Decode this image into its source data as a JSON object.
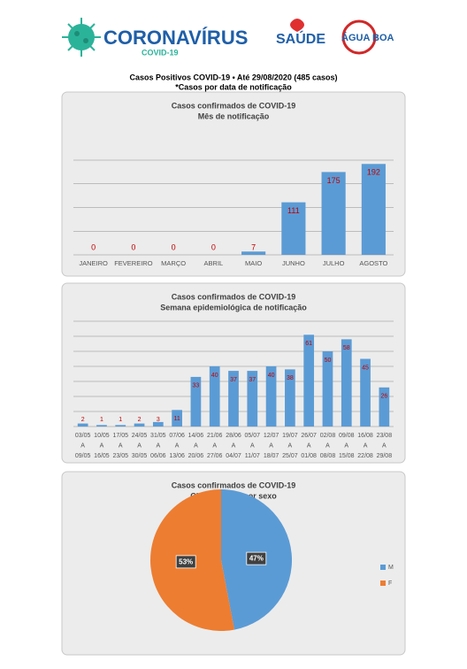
{
  "header": {
    "brand": "CORONAVÍRUS",
    "brand_sub": "COVID-19",
    "org": "SAÚDE",
    "city": "ÁGUA BOA"
  },
  "title": "Casos Positivos COVID-19 • Até 29/08/2020 (485 casos)",
  "subtitle": "*Casos por data de notificação",
  "chart_data": [
    {
      "type": "bar",
      "title": "Casos confirmados de COVID-19",
      "subtitle": "Mês de notificação",
      "categories": [
        [
          "JANEIRO"
        ],
        [
          "FEVEREIRO"
        ],
        [
          "MARÇO"
        ],
        [
          "ABRIL"
        ],
        [
          "MAIO"
        ],
        [
          "JUNHO"
        ],
        [
          "JULHO"
        ],
        [
          "AGOSTO"
        ]
      ],
      "values": [
        0,
        0,
        0,
        0,
        7,
        111,
        175,
        192
      ],
      "color": "#5b9bd5",
      "label_color": "#c00000",
      "ylim": [
        0,
        200
      ],
      "yticks": [
        0,
        50,
        100,
        150,
        200
      ],
      "grid": true
    },
    {
      "type": "bar",
      "title": "Casos confirmados de COVID-19",
      "subtitle": "Semana epidemiológica de notificação",
      "categories": [
        [
          "03/05",
          "A",
          "09/05"
        ],
        [
          "10/05",
          "A",
          "16/05"
        ],
        [
          "17/05",
          "A",
          "23/05"
        ],
        [
          "24/05",
          "A",
          "30/05"
        ],
        [
          "31/05",
          "A",
          "06/06"
        ],
        [
          "07/06",
          "A",
          "13/06"
        ],
        [
          "14/06",
          "A",
          "20/06"
        ],
        [
          "21/06",
          "A",
          "27/06"
        ],
        [
          "28/06",
          "A",
          "04/07"
        ],
        [
          "05/07",
          "A",
          "11/07"
        ],
        [
          "12/07",
          "A",
          "18/07"
        ],
        [
          "19/07",
          "A",
          "25/07"
        ],
        [
          "26/07",
          "A",
          "01/08"
        ],
        [
          "02/08",
          "A",
          "08/08"
        ],
        [
          "09/08",
          "A",
          "15/08"
        ],
        [
          "16/08",
          "A",
          "22/08"
        ],
        [
          "23/08",
          "A",
          "29/08"
        ]
      ],
      "values": [
        2,
        1,
        1,
        2,
        3,
        11,
        33,
        40,
        37,
        37,
        40,
        38,
        61,
        50,
        58,
        45,
        26
      ],
      "color": "#5b9bd5",
      "label_color": "#c00000",
      "ylim": [
        0,
        70
      ],
      "yticks": [
        0,
        10,
        20,
        30,
        40,
        50,
        60,
        70
      ],
      "grid": true
    },
    {
      "type": "pie",
      "title": "Casos confirmados de COVID-19",
      "subtitle": "Classificação por sexo",
      "categories": [
        "M",
        "F"
      ],
      "values": [
        47,
        53
      ],
      "value_labels": [
        "47%",
        "53%"
      ],
      "colors": [
        "#5b9bd5",
        "#ed7d31"
      ],
      "legend": "right"
    }
  ]
}
